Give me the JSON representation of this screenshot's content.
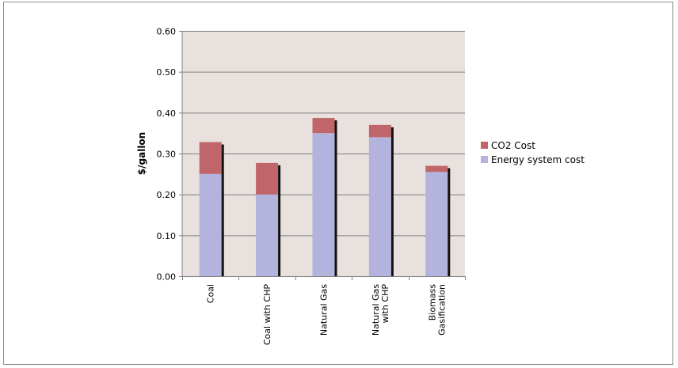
{
  "chart_data": {
    "type": "bar",
    "stacked": true,
    "categories": [
      [
        "Coal"
      ],
      [
        "Coal with CHP"
      ],
      [
        "Natural Gas"
      ],
      [
        "Natural Gas",
        "with CHP"
      ],
      [
        "Biomass",
        "Gasification"
      ]
    ],
    "series": [
      {
        "name": "Energy system cost",
        "color": "#b3b3dd",
        "values": [
          0.25,
          0.2,
          0.35,
          0.34,
          0.255
        ]
      },
      {
        "name": "CO2 Cost",
        "color": "#c0666a",
        "values": [
          0.078,
          0.077,
          0.037,
          0.03,
          0.015
        ]
      }
    ],
    "ylabel": "$/gallon",
    "yticks": [
      "0.00",
      "0.10",
      "0.20",
      "0.30",
      "0.40",
      "0.50",
      "0.60"
    ],
    "ylim": [
      0,
      0.6
    ],
    "grid": true,
    "legend_position": "right",
    "legend_order": [
      "CO2 Cost",
      "Energy system cost"
    ],
    "plot_background": "#e8e1dd"
  }
}
